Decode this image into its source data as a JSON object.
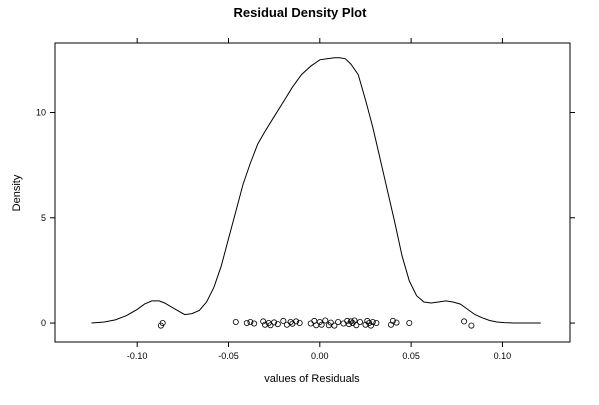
{
  "chart_data": {
    "type": "line",
    "title": "Residual Density Plot",
    "xlabel": "values of Residuals",
    "ylabel": "Density",
    "xlim": [
      -0.145,
      0.137
    ],
    "ylim": [
      -0.9,
      13.3
    ],
    "grid": false,
    "legend": "none",
    "x_ticks": [
      {
        "value": -0.1,
        "label": "-0.10"
      },
      {
        "value": -0.05,
        "label": "-0.05"
      },
      {
        "value": 0.0,
        "label": "0.00"
      },
      {
        "value": 0.05,
        "label": "0.05"
      },
      {
        "value": 0.1,
        "label": "0.10"
      }
    ],
    "y_ticks": [
      {
        "value": 0,
        "label": "0"
      },
      {
        "value": 5,
        "label": "5"
      },
      {
        "value": 10,
        "label": "10"
      }
    ],
    "series": [
      {
        "x": [
          -0.125,
          -0.118,
          -0.112,
          -0.106,
          -0.1,
          -0.096,
          -0.092,
          -0.088,
          -0.085,
          -0.082,
          -0.078,
          -0.074,
          -0.07,
          -0.066,
          -0.062,
          -0.058,
          -0.054,
          -0.05,
          -0.046,
          -0.042,
          -0.038,
          -0.034,
          -0.03,
          -0.025,
          -0.02,
          -0.015,
          -0.01,
          -0.005,
          0.0,
          0.004,
          0.008,
          0.011,
          0.014,
          0.017,
          0.021,
          0.025,
          0.029,
          0.033,
          0.037,
          0.041,
          0.045,
          0.049,
          0.053,
          0.057,
          0.061,
          0.065,
          0.069,
          0.073,
          0.077,
          0.081,
          0.085,
          0.089,
          0.093,
          0.097,
          0.101,
          0.106,
          0.111,
          0.116,
          0.121
        ],
        "y": [
          0.0,
          0.05,
          0.15,
          0.35,
          0.65,
          0.9,
          1.05,
          1.05,
          0.95,
          0.8,
          0.6,
          0.4,
          0.45,
          0.6,
          1.0,
          1.7,
          2.7,
          4.0,
          5.3,
          6.6,
          7.6,
          8.5,
          9.1,
          9.8,
          10.5,
          11.2,
          11.8,
          12.2,
          12.5,
          12.55,
          12.6,
          12.6,
          12.55,
          12.3,
          11.8,
          10.6,
          9.3,
          7.8,
          6.3,
          4.8,
          3.2,
          2.0,
          1.3,
          1.0,
          0.95,
          1.0,
          1.05,
          1.0,
          0.9,
          0.65,
          0.4,
          0.25,
          0.12,
          0.05,
          0.02,
          0.0,
          0.0,
          0.0,
          0.0
        ]
      }
    ],
    "rug_points": [
      {
        "x": -0.087,
        "y": -0.12
      },
      {
        "x": -0.086,
        "y": 0.0
      },
      {
        "x": -0.046,
        "y": 0.05
      },
      {
        "x": -0.04,
        "y": 0.0
      },
      {
        "x": -0.038,
        "y": 0.05
      },
      {
        "x": -0.036,
        "y": -0.02
      },
      {
        "x": -0.031,
        "y": 0.08
      },
      {
        "x": -0.03,
        "y": -0.08
      },
      {
        "x": -0.028,
        "y": 0.0
      },
      {
        "x": -0.027,
        "y": -0.1
      },
      {
        "x": -0.025,
        "y": 0.03
      },
      {
        "x": -0.023,
        "y": -0.05
      },
      {
        "x": -0.02,
        "y": 0.1
      },
      {
        "x": -0.018,
        "y": -0.08
      },
      {
        "x": -0.016,
        "y": 0.05
      },
      {
        "x": -0.015,
        "y": -0.03
      },
      {
        "x": -0.013,
        "y": 0.08
      },
      {
        "x": -0.011,
        "y": 0.0
      },
      {
        "x": -0.005,
        "y": -0.02
      },
      {
        "x": -0.003,
        "y": 0.1
      },
      {
        "x": -0.002,
        "y": -0.1
      },
      {
        "x": 0.0,
        "y": 0.05
      },
      {
        "x": 0.001,
        "y": -0.08
      },
      {
        "x": 0.003,
        "y": 0.12
      },
      {
        "x": 0.005,
        "y": -0.1
      },
      {
        "x": 0.006,
        "y": 0.02
      },
      {
        "x": 0.008,
        "y": -0.12
      },
      {
        "x": 0.01,
        "y": 0.05
      },
      {
        "x": 0.013,
        "y": -0.02
      },
      {
        "x": 0.015,
        "y": 0.1
      },
      {
        "x": 0.016,
        "y": -0.05
      },
      {
        "x": 0.017,
        "y": 0.08
      },
      {
        "x": 0.018,
        "y": 0.0
      },
      {
        "x": 0.019,
        "y": 0.12
      },
      {
        "x": 0.02,
        "y": -0.1
      },
      {
        "x": 0.022,
        "y": 0.05
      },
      {
        "x": 0.025,
        "y": -0.08
      },
      {
        "x": 0.026,
        "y": 0.1
      },
      {
        "x": 0.027,
        "y": 0.0
      },
      {
        "x": 0.028,
        "y": -0.12
      },
      {
        "x": 0.029,
        "y": 0.05
      },
      {
        "x": 0.031,
        "y": 0.0
      },
      {
        "x": 0.039,
        "y": -0.08
      },
      {
        "x": 0.04,
        "y": 0.1
      },
      {
        "x": 0.042,
        "y": 0.02
      },
      {
        "x": 0.049,
        "y": 0.0
      },
      {
        "x": 0.079,
        "y": 0.08
      },
      {
        "x": 0.083,
        "y": -0.12
      }
    ]
  }
}
